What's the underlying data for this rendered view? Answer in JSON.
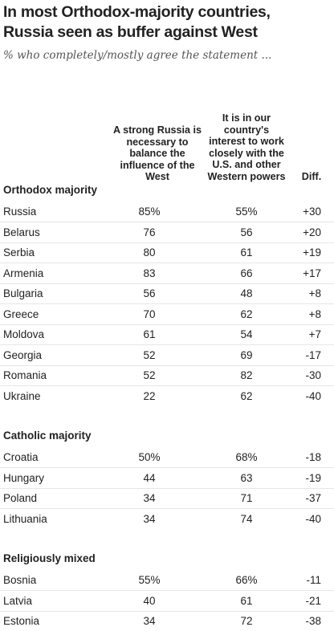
{
  "title_line1": "In most Orthodox-majority countries,",
  "title_line2": "Russia seen as buffer against West",
  "subtitle": "% who completely/mostly agree the statement ...",
  "chart_data": {
    "type": "table",
    "columns": [
      "A strong Russia is necessary to balance the influence of the West",
      "It is in our country's interest to work closely with the U.S. and other Western powers",
      "Diff."
    ],
    "groups": [
      {
        "name": "Orthodox majority",
        "rows": [
          {
            "country": "Russia",
            "strong_russia": "85%",
            "work_with_west": "55%",
            "diff": "+30"
          },
          {
            "country": "Belarus",
            "strong_russia": "76",
            "work_with_west": "56",
            "diff": "+20"
          },
          {
            "country": "Serbia",
            "strong_russia": "80",
            "work_with_west": "61",
            "diff": "+19"
          },
          {
            "country": "Armenia",
            "strong_russia": "83",
            "work_with_west": "66",
            "diff": "+17"
          },
          {
            "country": "Bulgaria",
            "strong_russia": "56",
            "work_with_west": "48",
            "diff": "+8"
          },
          {
            "country": "Greece",
            "strong_russia": "70",
            "work_with_west": "62",
            "diff": "+8"
          },
          {
            "country": "Moldova",
            "strong_russia": "61",
            "work_with_west": "54",
            "diff": "+7"
          },
          {
            "country": "Georgia",
            "strong_russia": "52",
            "work_with_west": "69",
            "diff": "-17"
          },
          {
            "country": "Romania",
            "strong_russia": "52",
            "work_with_west": "82",
            "diff": "-30"
          },
          {
            "country": "Ukraine",
            "strong_russia": "22",
            "work_with_west": "62",
            "diff": "-40"
          }
        ]
      },
      {
        "name": "Catholic majority",
        "rows": [
          {
            "country": "Croatia",
            "strong_russia": "50%",
            "work_with_west": "68%",
            "diff": "-18"
          },
          {
            "country": "Hungary",
            "strong_russia": "44",
            "work_with_west": "63",
            "diff": "-19"
          },
          {
            "country": "Poland",
            "strong_russia": "34",
            "work_with_west": "71",
            "diff": "-37"
          },
          {
            "country": "Lithuania",
            "strong_russia": "34",
            "work_with_west": "74",
            "diff": "-40"
          }
        ]
      },
      {
        "name": "Religiously mixed",
        "rows": [
          {
            "country": "Bosnia",
            "strong_russia": "55%",
            "work_with_west": "66%",
            "diff": "-11"
          },
          {
            "country": "Latvia",
            "strong_russia": "40",
            "work_with_west": "61",
            "diff": "-21"
          },
          {
            "country": "Estonia",
            "strong_russia": "34",
            "work_with_west": "72",
            "diff": "-38"
          }
        ]
      }
    ]
  }
}
